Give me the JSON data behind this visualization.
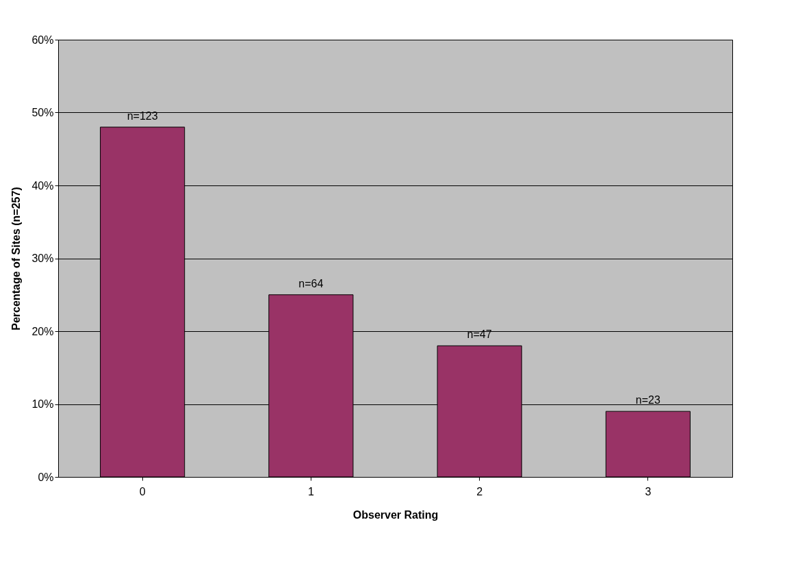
{
  "chart_data": {
    "type": "bar",
    "xlabel": "Observer Rating",
    "ylabel": "Percentage of Sites (n=257)",
    "categories": [
      "0",
      "1",
      "2",
      "3"
    ],
    "values": [
      48,
      25,
      18,
      9
    ],
    "annotations": [
      {
        "text": "n=123",
        "x": "0",
        "y": 48
      },
      {
        "text": "n=64",
        "x": "1",
        "y": 25
      },
      {
        "text": "n=47",
        "x": "2",
        "y": 18
      },
      {
        "text": "n=23",
        "x": "3",
        "y": 9
      }
    ],
    "color": "#993366",
    "ylim": [
      0,
      60
    ],
    "yticks": [
      {
        "value": 0,
        "label": "0%"
      },
      {
        "value": 10,
        "label": "10%"
      },
      {
        "value": 20,
        "label": "20%"
      },
      {
        "value": 30,
        "label": "30%"
      },
      {
        "value": 40,
        "label": "40%"
      },
      {
        "value": 50,
        "label": "50%"
      },
      {
        "value": 60,
        "label": "60%"
      }
    ],
    "grid": "y"
  }
}
